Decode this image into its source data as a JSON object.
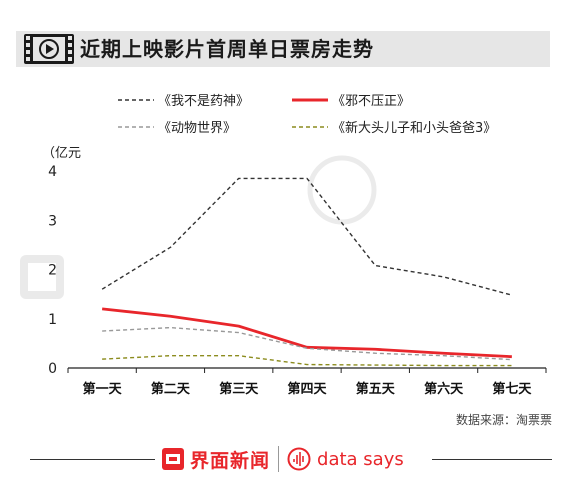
{
  "title": "近期上映影片首周单日票房走势",
  "source": "数据来源：淘票票",
  "brand": {
    "jiemian": "界面新闻",
    "datasays": "data says"
  },
  "colors": {
    "title_bar": "#e6e6e6",
    "brand_red": "#e8262b"
  },
  "chart_data": {
    "type": "line",
    "categories": [
      "第一天",
      "第二天",
      "第三天",
      "第四天",
      "第五天",
      "第六天",
      "第七天"
    ],
    "ylabel": "（亿元",
    "ylim": [
      0,
      4
    ],
    "yticks": [
      "0",
      "1",
      "2",
      "3",
      "4"
    ],
    "grid": false,
    "legend_position": "top",
    "series": [
      {
        "name": "《我不是药神》",
        "color": "#333333",
        "dash": "dashed",
        "values": [
          1.6,
          2.45,
          3.85,
          3.85,
          2.08,
          1.85,
          1.48
        ]
      },
      {
        "name": "《邪不压正》",
        "color": "#e8262b",
        "dash": "solid",
        "values": [
          1.2,
          1.05,
          0.85,
          0.42,
          0.38,
          0.3,
          0.23
        ]
      },
      {
        "name": "《动物世界》",
        "color": "#999999",
        "dash": "dashed",
        "values": [
          0.75,
          0.82,
          0.72,
          0.4,
          0.3,
          0.25,
          0.17
        ]
      },
      {
        "name": "《新大头儿子和小头爸爸3》",
        "color": "#8c8c1e",
        "dash": "dashed",
        "values": [
          0.18,
          0.25,
          0.25,
          0.07,
          0.06,
          0.05,
          0.05
        ]
      }
    ]
  }
}
